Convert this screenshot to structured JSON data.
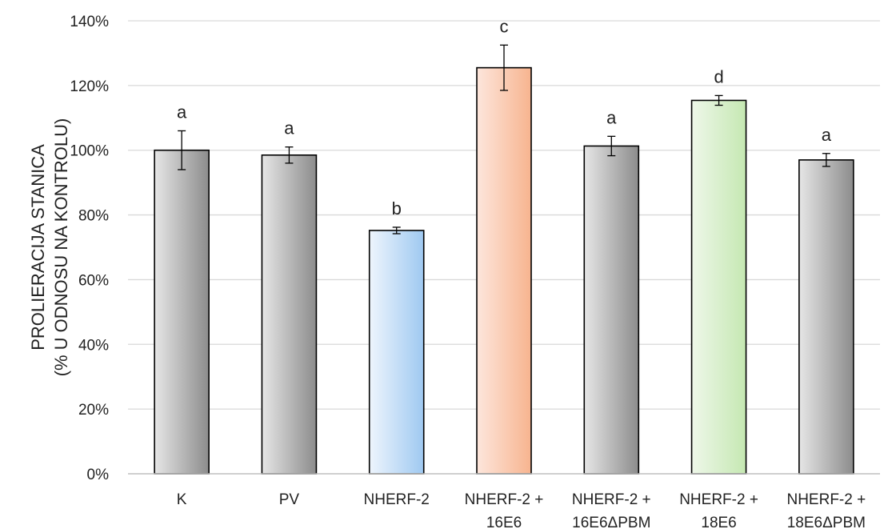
{
  "chart_data": {
    "type": "bar",
    "title": "",
    "xlabel": "",
    "ylabel_lines": [
      "PROLIERACIJA STANICA",
      "(% U ODNOSU NA KONTROLU)"
    ],
    "ylim": [
      0,
      140
    ],
    "y_ticks": [
      0,
      20,
      40,
      60,
      80,
      100,
      120,
      140
    ],
    "y_tick_labels": [
      "0%",
      "20%",
      "40%",
      "60%",
      "80%",
      "100%",
      "120%",
      "140%"
    ],
    "grid": true,
    "legend": "none",
    "categories": [
      [
        "K"
      ],
      [
        "PV"
      ],
      [
        "NHERF-2"
      ],
      [
        "NHERF-2 +",
        "16E6"
      ],
      [
        "NHERF-2 +",
        "16E6ΔPBM"
      ],
      [
        "NHERF-2 +",
        "18E6"
      ],
      [
        "NHERF-2 +",
        "18E6ΔPBM"
      ]
    ],
    "values": [
      100,
      98.5,
      75.2,
      125.5,
      101.3,
      115.4,
      97
    ],
    "errors": [
      6,
      2.5,
      1,
      7,
      3,
      1.5,
      2
    ],
    "significance_labels": [
      "a",
      "a",
      "b",
      "c",
      "a",
      "d",
      "a"
    ],
    "bar_colors": [
      [
        "#e6e6e6",
        "#8c8c8c"
      ],
      [
        "#e6e6e6",
        "#8c8c8c"
      ],
      [
        "#eef5fd",
        "#9fc9f1"
      ],
      [
        "#fde6dc",
        "#f7b48f"
      ],
      [
        "#e6e6e6",
        "#8c8c8c"
      ],
      [
        "#eef7e9",
        "#c5e8b2"
      ],
      [
        "#e6e6e6",
        "#8c8c8c"
      ]
    ],
    "grid_color": "#d9d9d9",
    "axis_color": "#bfbfbf",
    "bar_outline_color": "#000000"
  }
}
